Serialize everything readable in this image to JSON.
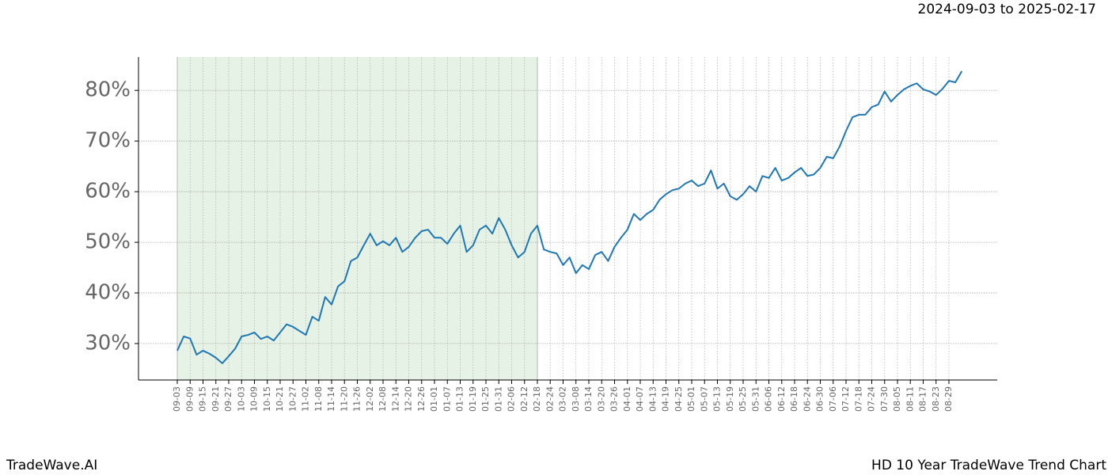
{
  "chart_data": {
    "type": "line",
    "title": "2024-09-03 to 2025-02-17",
    "footer_left": "TradeWave.AI",
    "footer_right": "HD 10 Year TradeWave Trend Chart",
    "categories": [
      "09-03",
      null,
      "09-09",
      null,
      "09-15",
      null,
      "09-21",
      null,
      "09-27",
      null,
      "10-03",
      null,
      "10-09",
      null,
      "10-15",
      null,
      "10-21",
      null,
      "10-27",
      null,
      "11-02",
      null,
      "11-08",
      null,
      "11-14",
      null,
      "11-20",
      null,
      "11-26",
      null,
      "12-02",
      null,
      "12-08",
      null,
      "12-14",
      null,
      "12-20",
      null,
      "12-26",
      null,
      "01-01",
      null,
      "01-07",
      null,
      "01-13",
      null,
      "01-19",
      null,
      "01-25",
      null,
      "01-31",
      null,
      "02-06",
      null,
      "02-12",
      null,
      "02-18",
      null,
      "02-24",
      null,
      "03-02",
      null,
      "03-08",
      null,
      "03-14",
      null,
      "03-20",
      null,
      "03-26",
      null,
      "04-01",
      null,
      "04-07",
      null,
      "04-13",
      null,
      "04-19",
      null,
      "04-25",
      null,
      "05-01",
      null,
      "05-07",
      null,
      "05-13",
      null,
      "05-19",
      null,
      "05-25",
      null,
      "05-31",
      null,
      "06-06",
      null,
      "06-12",
      null,
      "06-18",
      null,
      "06-24",
      null,
      "06-30",
      null,
      "07-06",
      null,
      "07-12",
      null,
      "07-18",
      null,
      "07-24",
      null,
      "07-30",
      null,
      "08-05",
      null,
      "08-11",
      null,
      "08-17",
      null,
      "08-23",
      null,
      "08-29",
      null,
      null
    ],
    "values": [
      28.6,
      31.4,
      31,
      27.8,
      28.6,
      28,
      27.2,
      26.1,
      27.5,
      29,
      31.4,
      31.7,
      32.2,
      30.9,
      31.4,
      30.6,
      32.2,
      33.8,
      33.3,
      32.5,
      31.7,
      35.3,
      34.5,
      39.2,
      37.7,
      41.3,
      42.3,
      46.3,
      47,
      49.4,
      51.7,
      49.4,
      50.2,
      49.4,
      50.9,
      48.1,
      49.1,
      50.9,
      52.2,
      52.5,
      50.9,
      50.9,
      49.7,
      51.7,
      53.3,
      48.1,
      49.4,
      52.5,
      53.3,
      51.7,
      54.8,
      52.5,
      49.4,
      47,
      48.1,
      51.7,
      53.3,
      48.6,
      48.1,
      47.8,
      45.5,
      47,
      43.9,
      45.5,
      44.7,
      47.5,
      48.1,
      46.3,
      49.1,
      50.9,
      52.5,
      55.6,
      54.4,
      55.6,
      56.4,
      58.4,
      59.5,
      60.3,
      60.6,
      61.6,
      62.2,
      61.1,
      61.6,
      64.2,
      60.6,
      61.6,
      59.1,
      58.4,
      59.5,
      61.1,
      60,
      63.1,
      62.7,
      64.7,
      62.2,
      62.7,
      63.8,
      64.7,
      63.1,
      63.4,
      64.7,
      66.9,
      66.6,
      68.9,
      72,
      74.7,
      75.2,
      75.2,
      76.7,
      77.2,
      79.8,
      77.8,
      79.1,
      80.2,
      80.9,
      81.4,
      80.2,
      79.8,
      79.1,
      80.3,
      81.9,
      81.6,
      83.8
    ],
    "color": "#1f77b4",
    "shaded": {
      "from": "09-03",
      "to": "02-18",
      "color": "#e6f2e6"
    },
    "ylim": [
      22.8,
      86.6
    ],
    "yticks": [
      {
        "value": 30,
        "label": "30%"
      },
      {
        "value": 40,
        "label": "40%"
      },
      {
        "value": 50,
        "label": "50%"
      },
      {
        "value": 60,
        "label": "60%"
      },
      {
        "value": 70,
        "label": "70%"
      },
      {
        "value": 80,
        "label": "80%"
      }
    ],
    "grid": true
  }
}
